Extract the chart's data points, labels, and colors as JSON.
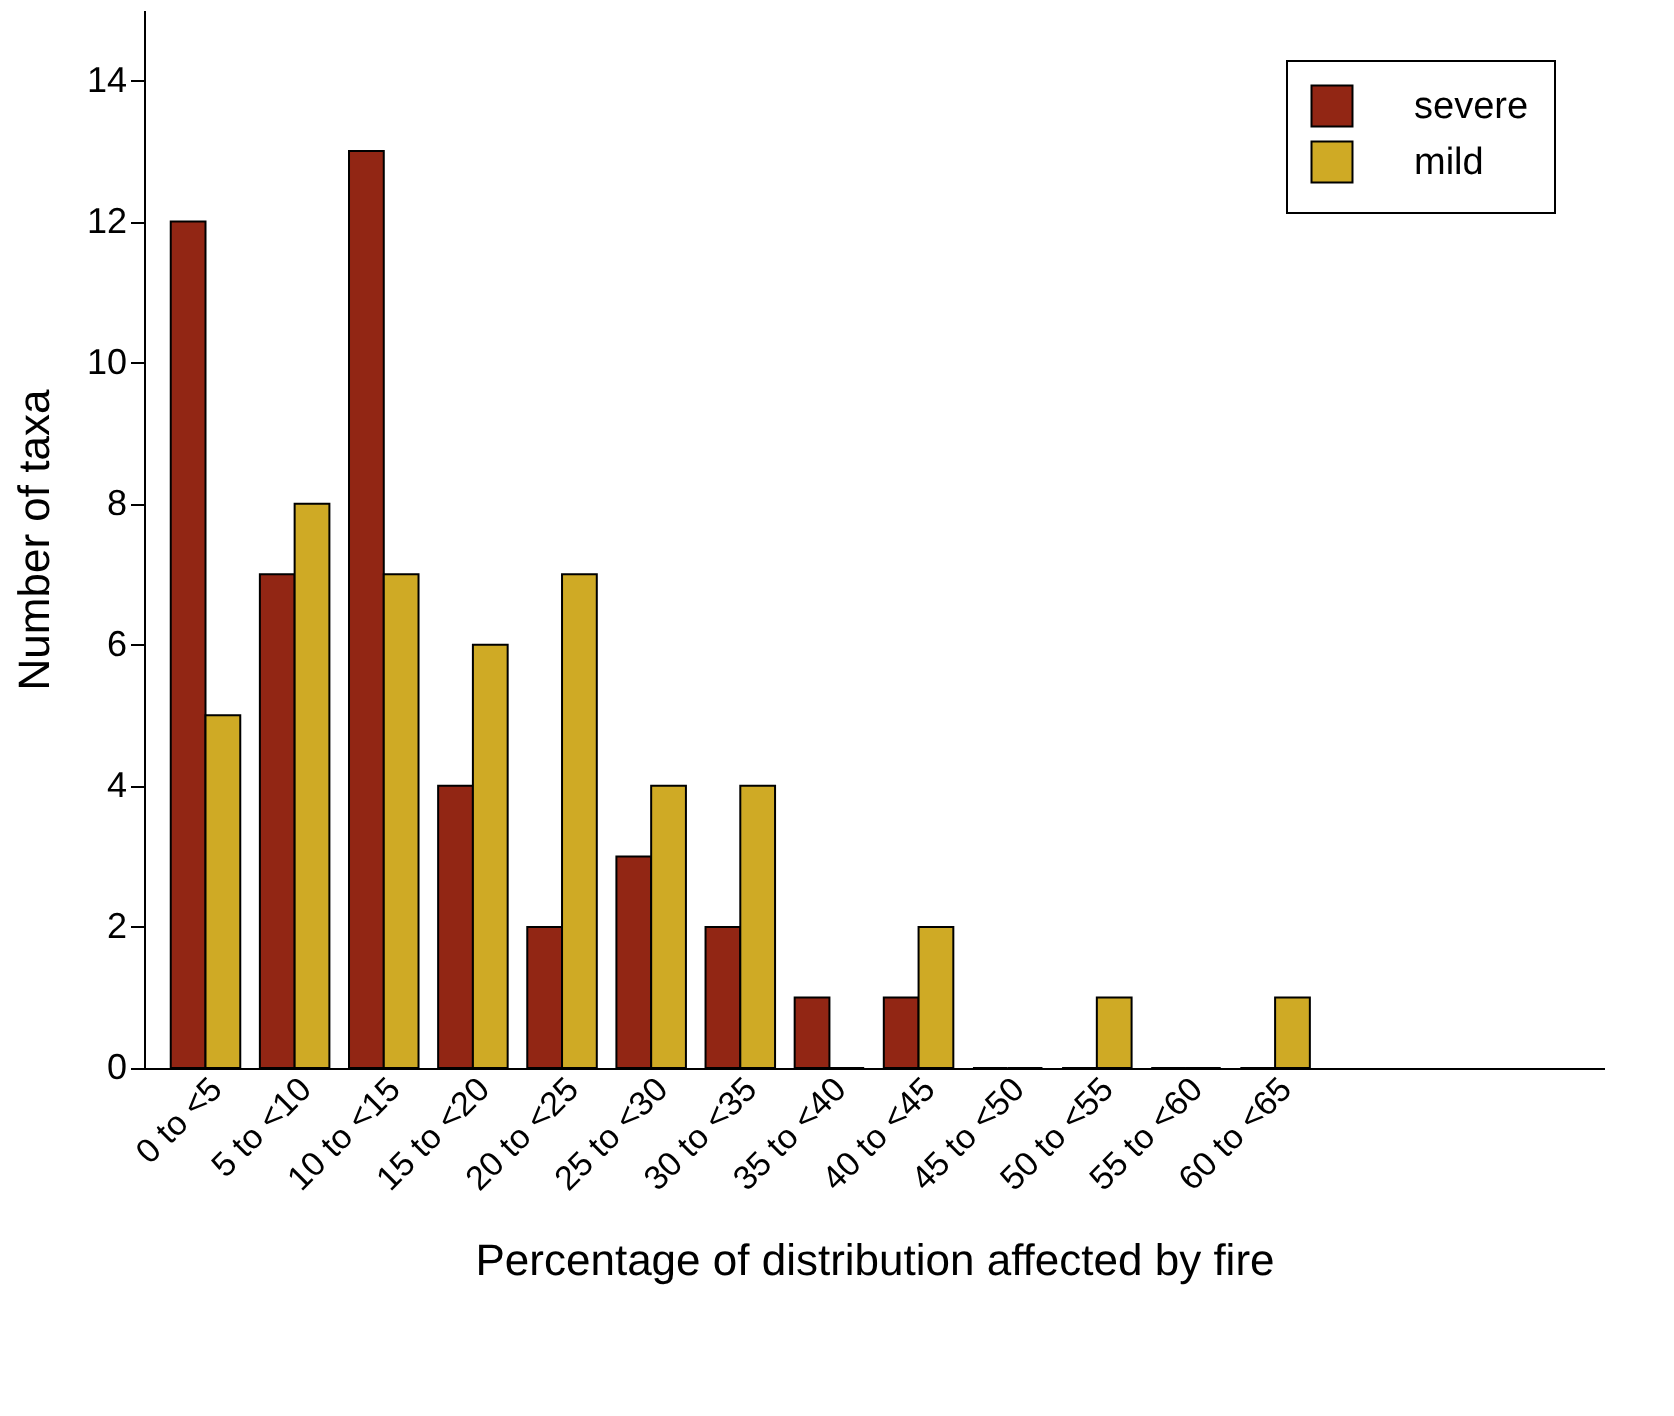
{
  "chart_data": {
    "type": "bar",
    "xlabel": "Percentage of distribution affected by fire",
    "ylabel": "Number of taxa",
    "categories": [
      "0 to <5",
      "5 to <10",
      "10 to <15",
      "15 to <20",
      "20 to <25",
      "25 to <30",
      "30 to <35",
      "35 to <40",
      "40 to <45",
      "45 to <50",
      "50 to <55",
      "55 to <60",
      "60 to <65",
      null,
      null,
      null
    ],
    "series": [
      {
        "name": "severe",
        "color": "#922614",
        "values": [
          12,
          7,
          13,
          4,
          2,
          3,
          2,
          1,
          1,
          0,
          0,
          0,
          0,
          null,
          null,
          null
        ]
      },
      {
        "name": "mild",
        "color": "#cfaa25",
        "values": [
          5,
          8,
          7,
          6,
          7,
          4,
          4,
          0,
          2,
          0,
          1,
          0,
          1,
          null,
          null,
          null
        ]
      }
    ],
    "ylim": [
      0,
      15
    ],
    "yticks": [
      0,
      2,
      4,
      6,
      8,
      10,
      12,
      14
    ],
    "grid": false,
    "legend": "top right"
  }
}
